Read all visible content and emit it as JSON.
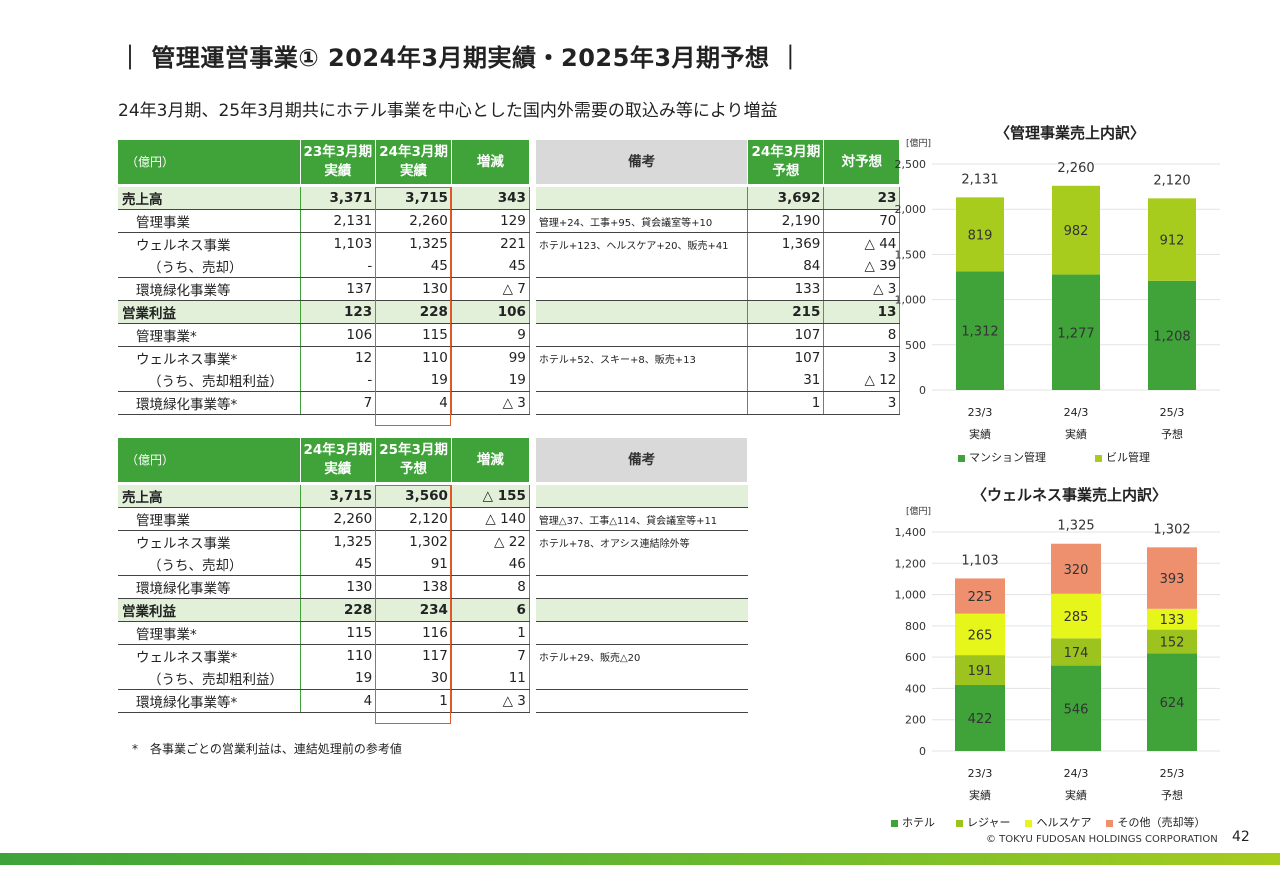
{
  "header": {
    "title": "｜ 管理運営事業① 2024年3月期実績・2025年3月期予想 ｜",
    "subtitle": "24年3月期、25年3月期共にホテル事業を中心とした国内外需要の取込み等により増益"
  },
  "table1": {
    "unit": "（億円）",
    "columns": [
      "23年3月期\n実績",
      "24年3月期\n実績",
      "増減",
      "備考",
      "24年3月期\n予想",
      "対予想"
    ],
    "rows": [
      {
        "label": "売上高",
        "v1": "3,371",
        "v2": "3,715",
        "diff": "343",
        "remark": "",
        "plan": "3,692",
        "vs": "23",
        "total": true
      },
      {
        "label": "管理事業",
        "v1": "2,131",
        "v2": "2,260",
        "diff": "129",
        "remark": "管理+24、工事+95、貸会議室等+10",
        "plan": "2,190",
        "vs": "70"
      },
      {
        "label": "ウェルネス事業",
        "v1": "1,103",
        "v2": "1,325",
        "diff": "221",
        "remark": "ホテル+123、ヘルスケア+20、販売+41",
        "plan": "1,369",
        "vs": "△ 44"
      },
      {
        "label": "（うち、売却）",
        "v1": "-",
        "v2": "45",
        "diff": "45",
        "remark": "",
        "plan": "84",
        "vs": "△ 39"
      },
      {
        "label": "環境緑化事業等",
        "v1": "137",
        "v2": "130",
        "diff": "△ 7",
        "remark": "",
        "plan": "133",
        "vs": "△ 3"
      },
      {
        "label": "営業利益",
        "v1": "123",
        "v2": "228",
        "diff": "106",
        "remark": "",
        "plan": "215",
        "vs": "13",
        "total": true
      },
      {
        "label": "管理事業*",
        "v1": "106",
        "v2": "115",
        "diff": "9",
        "remark": "",
        "plan": "107",
        "vs": "8"
      },
      {
        "label": "ウェルネス事業*",
        "v1": "12",
        "v2": "110",
        "diff": "99",
        "remark": "ホテル+52、スキー+8、販売+13",
        "plan": "107",
        "vs": "3"
      },
      {
        "label": "（うち、売却粗利益）",
        "v1": "-",
        "v2": "19",
        "diff": "19",
        "remark": "",
        "plan": "31",
        "vs": "△ 12"
      },
      {
        "label": "環境緑化事業等*",
        "v1": "7",
        "v2": "4",
        "diff": "△ 3",
        "remark": "",
        "plan": "1",
        "vs": "3"
      }
    ]
  },
  "table2": {
    "unit": "（億円）",
    "columns": [
      "24年3月期\n実績",
      "25年3月期\n予想",
      "増減",
      "備考"
    ],
    "rows": [
      {
        "label": "売上高",
        "v1": "3,715",
        "v2": "3,560",
        "diff": "△ 155",
        "remark": "",
        "total": true
      },
      {
        "label": "管理事業",
        "v1": "2,260",
        "v2": "2,120",
        "diff": "△ 140",
        "remark": "管理△37、工事△114、貸会議室等+11"
      },
      {
        "label": "ウェルネス事業",
        "v1": "1,325",
        "v2": "1,302",
        "diff": "△ 22",
        "remark": "ホテル+78、オアシス連結除外等"
      },
      {
        "label": "（うち、売却）",
        "v1": "45",
        "v2": "91",
        "diff": "46",
        "remark": ""
      },
      {
        "label": "環境緑化事業等",
        "v1": "130",
        "v2": "138",
        "diff": "8",
        "remark": ""
      },
      {
        "label": "営業利益",
        "v1": "228",
        "v2": "234",
        "diff": "6",
        "remark": "",
        "total": true
      },
      {
        "label": "管理事業*",
        "v1": "115",
        "v2": "116",
        "diff": "1",
        "remark": ""
      },
      {
        "label": "ウェルネス事業*",
        "v1": "110",
        "v2": "117",
        "diff": "7",
        "remark": "ホテル+29、販売△20"
      },
      {
        "label": "（うち、売却粗利益）",
        "v1": "19",
        "v2": "30",
        "diff": "11",
        "remark": ""
      },
      {
        "label": "環境緑化事業等*",
        "v1": "4",
        "v2": "1",
        "diff": "△ 3",
        "remark": ""
      }
    ]
  },
  "footnote": "*　各事業ごとの営業利益は、連結処理前の参考値",
  "chart_data": [
    {
      "type": "bar",
      "stacked": true,
      "title": "〈管理事業売上内訳〉",
      "unit_label": "[億円]",
      "categories": [
        "23/3\n実績",
        "24/3\n実績",
        "25/3\n予想"
      ],
      "series": [
        {
          "name": "マンション管理",
          "values": [
            1312,
            1277,
            1208
          ],
          "color": "#3fa33a"
        },
        {
          "name": "ビル管理",
          "values": [
            819,
            982,
            912
          ],
          "color": "#a8cc1e"
        }
      ],
      "totals": [
        2131,
        2260,
        2120
      ],
      "ylim": [
        0,
        2500
      ],
      "yticks": [
        0,
        500,
        1000,
        1500,
        2000,
        2500
      ],
      "grid": true,
      "legend": "bottom"
    },
    {
      "type": "bar",
      "stacked": true,
      "title": "〈ウェルネス事業売上内訳〉",
      "unit_label": "[億円]",
      "categories": [
        "23/3\n実績",
        "24/3\n実績",
        "25/3\n予想"
      ],
      "series": [
        {
          "name": "ホテル",
          "values": [
            422,
            546,
            624
          ],
          "color": "#3fa33a"
        },
        {
          "name": "レジャー",
          "values": [
            191,
            174,
            152
          ],
          "color": "#9cc31e"
        },
        {
          "name": "ヘルスケア",
          "values": [
            265,
            285,
            133
          ],
          "color": "#e6f51a"
        },
        {
          "name": "その他（売却等）",
          "values": [
            225,
            320,
            393
          ],
          "color": "#ee8f6e"
        }
      ],
      "totals": [
        1103,
        1325,
        1302
      ],
      "ylim": [
        0,
        1400
      ],
      "yticks": [
        0,
        200,
        400,
        600,
        800,
        1000,
        1200,
        1400
      ],
      "grid": true,
      "legend": "bottom"
    }
  ],
  "footer": {
    "copyright": "© TOKYU FUDOSAN HOLDINGS CORPORATION",
    "page": "42"
  }
}
